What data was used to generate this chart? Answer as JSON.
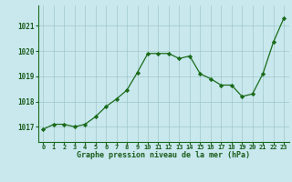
{
  "x": [
    0,
    1,
    2,
    3,
    4,
    5,
    6,
    7,
    8,
    9,
    10,
    11,
    12,
    13,
    14,
    15,
    16,
    17,
    18,
    19,
    20,
    21,
    22,
    23
  ],
  "y": [
    1016.9,
    1017.1,
    1017.1,
    1017.0,
    1017.1,
    1017.4,
    1017.8,
    1018.1,
    1018.45,
    1019.15,
    1019.9,
    1019.9,
    1019.9,
    1019.7,
    1019.8,
    1019.1,
    1018.9,
    1018.65,
    1018.65,
    1018.2,
    1018.3,
    1019.1,
    1020.35,
    1021.3
  ],
  "line_color": "#1a6b1a",
  "marker_color": "#1a6b1a",
  "bg_color": "#c8e8ee",
  "grid_color": "#a0c8c8",
  "xlabel": "Graphe pression niveau de la mer (hPa)",
  "xlabel_color": "#1a5c1a",
  "tick_color": "#1a5c1a",
  "ylim_min": 1016.4,
  "ylim_max": 1021.8,
  "ytick_vals": [
    1017,
    1018,
    1019,
    1020,
    1021
  ],
  "xtick_vals": [
    0,
    1,
    2,
    3,
    4,
    5,
    6,
    7,
    8,
    9,
    10,
    11,
    12,
    13,
    14,
    15,
    16,
    17,
    18,
    19,
    20,
    21,
    22,
    23
  ]
}
